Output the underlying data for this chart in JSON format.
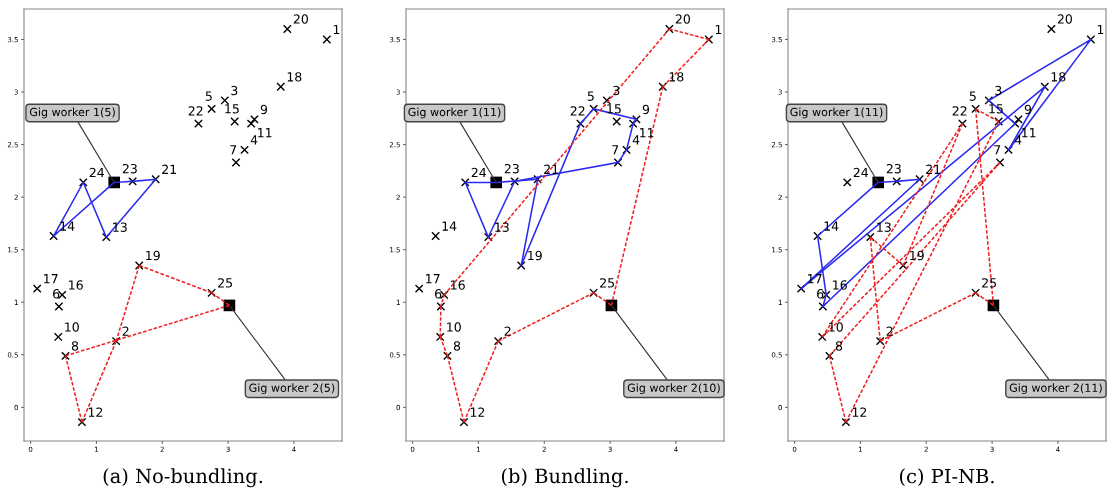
{
  "chart_data": [
    {
      "type": "scatter",
      "title": "(a) No-bundling.",
      "xlim": [
        -0.1,
        4.73
      ],
      "ylim": [
        -0.32,
        3.79
      ],
      "xticks": [
        0,
        1,
        2,
        3,
        4
      ],
      "yticks": [
        0,
        0.5,
        1,
        1.5,
        2,
        2.5,
        3,
        3.5
      ],
      "grid": false,
      "annotations": [
        {
          "text": "1",
          "x": 4.5,
          "y": 3.5
        },
        {
          "text": "2",
          "x": 1.3,
          "y": 0.63
        },
        {
          "text": "3",
          "x": 2.95,
          "y": 2.92
        },
        {
          "text": "4",
          "x": 3.25,
          "y": 2.45
        },
        {
          "text": "5",
          "x": 2.75,
          "y": 2.84
        },
        {
          "text": "6",
          "x": 0.43,
          "y": 0.96
        },
        {
          "text": "7",
          "x": 3.12,
          "y": 2.33
        },
        {
          "text": "8",
          "x": 0.53,
          "y": 0.49
        },
        {
          "text": "9",
          "x": 3.4,
          "y": 2.74
        },
        {
          "text": "10",
          "x": 0.42,
          "y": 0.67
        },
        {
          "text": "11",
          "x": 3.35,
          "y": 2.7
        },
        {
          "text": "12",
          "x": 0.78,
          "y": -0.14
        },
        {
          "text": "13",
          "x": 1.15,
          "y": 1.62
        },
        {
          "text": "14",
          "x": 0.35,
          "y": 1.63
        },
        {
          "text": "15",
          "x": 3.1,
          "y": 2.72
        },
        {
          "text": "16",
          "x": 0.48,
          "y": 1.07
        },
        {
          "text": "17",
          "x": 0.1,
          "y": 1.13
        },
        {
          "text": "18",
          "x": 3.8,
          "y": 3.05
        },
        {
          "text": "19",
          "x": 1.65,
          "y": 1.35
        },
        {
          "text": "20",
          "x": 3.9,
          "y": 3.6
        },
        {
          "text": "21",
          "x": 1.9,
          "y": 2.17
        },
        {
          "text": "22",
          "x": 2.55,
          "y": 2.7
        },
        {
          "text": "23",
          "x": 1.55,
          "y": 2.15
        },
        {
          "text": "24",
          "x": 0.8,
          "y": 2.14
        },
        {
          "text": "25",
          "x": 2.75,
          "y": 1.09
        },
        {
          "text": "Gig worker 1(5)",
          "x": 1.27,
          "y": 2.14
        },
        {
          "text": "Gig worker 2(5)",
          "x": 3.02,
          "y": 0.97
        }
      ],
      "series": [
        {
          "marker": "cross",
          "color": "#000000",
          "x": [
            4.5,
            1.3,
            2.95,
            3.25,
            2.75,
            0.43,
            3.12,
            0.53,
            3.4,
            0.42,
            3.35,
            0.78,
            1.15,
            0.35,
            3.1,
            0.48,
            0.1,
            3.8,
            1.65,
            3.9,
            1.9,
            2.55,
            1.55,
            0.8,
            2.75
          ],
          "values": [
            3.5,
            0.63,
            2.92,
            2.45,
            2.84,
            0.96,
            2.33,
            0.49,
            2.74,
            0.67,
            2.7,
            -0.14,
            1.62,
            1.63,
            2.72,
            1.07,
            1.13,
            3.05,
            1.35,
            3.6,
            2.17,
            2.7,
            2.15,
            2.14,
            1.09
          ]
        },
        {
          "marker": "square",
          "color": "#000000",
          "x": [
            1.27,
            3.02
          ],
          "values": [
            2.14,
            0.97
          ]
        },
        {
          "type": "line",
          "line_style": "solid",
          "color": "#2929f0",
          "x": [
            1.27,
            1.55
          ],
          "values": [
            2.14,
            2.15
          ]
        },
        {
          "type": "line",
          "line_style": "solid",
          "color": "#2929f0",
          "x": [
            1.55,
            1.9
          ],
          "values": [
            2.15,
            2.17
          ]
        },
        {
          "type": "line",
          "line_style": "solid",
          "color": "#2929f0",
          "x": [
            1.9,
            1.15
          ],
          "values": [
            2.17,
            1.62
          ]
        },
        {
          "type": "line",
          "line_style": "solid",
          "color": "#2929f0",
          "x": [
            1.15,
            0.8
          ],
          "values": [
            1.62,
            2.14
          ]
        },
        {
          "type": "line",
          "line_style": "solid",
          "color": "#2929f0",
          "x": [
            0.8,
            0.35
          ],
          "values": [
            2.14,
            1.63
          ]
        },
        {
          "type": "line",
          "line_style": "solid",
          "color": "#2929f0",
          "x": [
            0.35,
            1.27
          ],
          "values": [
            1.63,
            2.14
          ]
        },
        {
          "type": "line",
          "line_style": "dashed",
          "color": "#f02020",
          "x": [
            3.02,
            2.75
          ],
          "values": [
            0.97,
            1.09
          ]
        },
        {
          "type": "line",
          "line_style": "dashed",
          "color": "#f02020",
          "x": [
            2.75,
            1.65
          ],
          "values": [
            1.09,
            1.35
          ]
        },
        {
          "type": "line",
          "line_style": "dashed",
          "color": "#f02020",
          "x": [
            1.65,
            1.3
          ],
          "values": [
            1.35,
            0.63
          ]
        },
        {
          "type": "line",
          "line_style": "dashed",
          "color": "#f02020",
          "x": [
            1.3,
            0.78
          ],
          "values": [
            0.63,
            -0.14
          ]
        },
        {
          "type": "line",
          "line_style": "dashed",
          "color": "#f02020",
          "x": [
            0.78,
            0.53
          ],
          "values": [
            -0.14,
            0.49
          ]
        },
        {
          "type": "line",
          "line_style": "dashed",
          "color": "#f02020",
          "x": [
            0.53,
            3.02
          ],
          "values": [
            0.49,
            0.97
          ]
        }
      ]
    },
    {
      "type": "scatter",
      "title": "(b) Bundling.",
      "xlim": [
        -0.1,
        4.73
      ],
      "ylim": [
        -0.32,
        3.79
      ],
      "xticks": [
        0,
        1,
        2,
        3,
        4
      ],
      "yticks": [
        0,
        0.5,
        1,
        1.5,
        2,
        2.5,
        3,
        3.5
      ],
      "grid": false,
      "annotations": [
        {
          "text": "1",
          "x": 4.5,
          "y": 3.5
        },
        {
          "text": "2",
          "x": 1.3,
          "y": 0.63
        },
        {
          "text": "3",
          "x": 2.95,
          "y": 2.92
        },
        {
          "text": "4",
          "x": 3.25,
          "y": 2.45
        },
        {
          "text": "5",
          "x": 2.75,
          "y": 2.84
        },
        {
          "text": "6",
          "x": 0.43,
          "y": 0.96
        },
        {
          "text": "7",
          "x": 3.12,
          "y": 2.33
        },
        {
          "text": "8",
          "x": 0.53,
          "y": 0.49
        },
        {
          "text": "9",
          "x": 3.4,
          "y": 2.74
        },
        {
          "text": "10",
          "x": 0.42,
          "y": 0.67
        },
        {
          "text": "11",
          "x": 3.35,
          "y": 2.7
        },
        {
          "text": "12",
          "x": 0.78,
          "y": -0.14
        },
        {
          "text": "13",
          "x": 1.15,
          "y": 1.62
        },
        {
          "text": "14",
          "x": 0.35,
          "y": 1.63
        },
        {
          "text": "15",
          "x": 3.1,
          "y": 2.72
        },
        {
          "text": "16",
          "x": 0.48,
          "y": 1.07
        },
        {
          "text": "17",
          "x": 0.1,
          "y": 1.13
        },
        {
          "text": "18",
          "x": 3.8,
          "y": 3.05
        },
        {
          "text": "19",
          "x": 1.65,
          "y": 1.35
        },
        {
          "text": "20",
          "x": 3.9,
          "y": 3.6
        },
        {
          "text": "21",
          "x": 1.9,
          "y": 2.17
        },
        {
          "text": "22",
          "x": 2.55,
          "y": 2.7
        },
        {
          "text": "23",
          "x": 1.55,
          "y": 2.15
        },
        {
          "text": "24",
          "x": 0.8,
          "y": 2.14
        },
        {
          "text": "25",
          "x": 2.75,
          "y": 1.09
        },
        {
          "text": "Gig worker 1(11)",
          "x": 1.27,
          "y": 2.14
        },
        {
          "text": "Gig worker 2(10)",
          "x": 3.02,
          "y": 0.97
        }
      ],
      "series": [
        {
          "marker": "cross",
          "color": "#000000",
          "x": [
            4.5,
            1.3,
            2.95,
            3.25,
            2.75,
            0.43,
            3.12,
            0.53,
            3.4,
            0.42,
            3.35,
            0.78,
            1.15,
            0.35,
            3.1,
            0.48,
            0.1,
            3.8,
            1.65,
            3.9,
            1.9,
            2.55,
            1.55,
            0.8,
            2.75
          ],
          "values": [
            3.5,
            0.63,
            2.92,
            2.45,
            2.84,
            0.96,
            2.33,
            0.49,
            2.74,
            0.67,
            2.7,
            -0.14,
            1.62,
            1.63,
            2.72,
            1.07,
            1.13,
            3.05,
            1.35,
            3.6,
            2.17,
            2.7,
            2.15,
            2.14,
            1.09
          ]
        },
        {
          "marker": "square",
          "color": "#000000",
          "x": [
            1.27,
            3.02
          ],
          "values": [
            2.14,
            0.97
          ]
        },
        {
          "type": "line",
          "line_style": "solid",
          "color": "#2929f0",
          "x": [
            1.27,
            1.9
          ],
          "values": [
            2.14,
            2.17
          ]
        },
        {
          "type": "line",
          "line_style": "solid",
          "color": "#2929f0",
          "x": [
            1.9,
            1.65
          ],
          "values": [
            2.17,
            1.35
          ]
        },
        {
          "type": "line",
          "line_style": "solid",
          "color": "#2929f0",
          "x": [
            1.65,
            2.55
          ],
          "values": [
            1.35,
            2.7
          ]
        },
        {
          "type": "line",
          "line_style": "solid",
          "color": "#2929f0",
          "x": [
            2.55,
            2.75
          ],
          "values": [
            2.7,
            2.84
          ]
        },
        {
          "type": "line",
          "line_style": "solid",
          "color": "#2929f0",
          "x": [
            2.75,
            3.4
          ],
          "values": [
            2.84,
            2.74
          ]
        },
        {
          "type": "line",
          "line_style": "solid",
          "color": "#2929f0",
          "x": [
            3.4,
            3.35
          ],
          "values": [
            2.74,
            2.7
          ]
        },
        {
          "type": "line",
          "line_style": "solid",
          "color": "#2929f0",
          "x": [
            3.35,
            3.25
          ],
          "values": [
            2.7,
            2.45
          ]
        },
        {
          "type": "line",
          "line_style": "solid",
          "color": "#2929f0",
          "x": [
            3.25,
            3.12
          ],
          "values": [
            2.45,
            2.33
          ]
        },
        {
          "type": "line",
          "line_style": "solid",
          "color": "#2929f0",
          "x": [
            3.12,
            1.55
          ],
          "values": [
            2.33,
            2.15
          ]
        },
        {
          "type": "line",
          "line_style": "solid",
          "color": "#2929f0",
          "x": [
            1.55,
            1.15
          ],
          "values": [
            2.15,
            1.62
          ]
        },
        {
          "type": "line",
          "line_style": "solid",
          "color": "#2929f0",
          "x": [
            1.15,
            0.8
          ],
          "values": [
            1.62,
            2.14
          ]
        },
        {
          "type": "line",
          "line_style": "solid",
          "color": "#2929f0",
          "x": [
            0.8,
            1.27
          ],
          "values": [
            2.14,
            2.14
          ]
        },
        {
          "type": "line",
          "line_style": "dashed",
          "color": "#f02020",
          "x": [
            3.02,
            2.75
          ],
          "values": [
            0.97,
            1.09
          ]
        },
        {
          "type": "line",
          "line_style": "dashed",
          "color": "#f02020",
          "x": [
            2.75,
            1.3
          ],
          "values": [
            1.09,
            0.63
          ]
        },
        {
          "type": "line",
          "line_style": "dashed",
          "color": "#f02020",
          "x": [
            1.3,
            0.78
          ],
          "values": [
            0.63,
            -0.14
          ]
        },
        {
          "type": "line",
          "line_style": "dashed",
          "color": "#f02020",
          "x": [
            0.78,
            0.53
          ],
          "values": [
            -0.14,
            0.49
          ]
        },
        {
          "type": "line",
          "line_style": "dashed",
          "color": "#f02020",
          "x": [
            0.53,
            0.42
          ],
          "values": [
            0.49,
            0.67
          ]
        },
        {
          "type": "line",
          "line_style": "dashed",
          "color": "#f02020",
          "x": [
            0.42,
            0.43
          ],
          "values": [
            0.67,
            0.96
          ]
        },
        {
          "type": "line",
          "line_style": "dashed",
          "color": "#f02020",
          "x": [
            0.43,
            0.48
          ],
          "values": [
            0.96,
            1.07
          ]
        },
        {
          "type": "line",
          "line_style": "dashed",
          "color": "#f02020",
          "x": [
            0.48,
            3.9
          ],
          "values": [
            1.07,
            3.6
          ]
        },
        {
          "type": "line",
          "line_style": "dashed",
          "color": "#f02020",
          "x": [
            3.9,
            4.5
          ],
          "values": [
            3.6,
            3.5
          ]
        },
        {
          "type": "line",
          "line_style": "dashed",
          "color": "#f02020",
          "x": [
            4.5,
            3.8
          ],
          "values": [
            3.5,
            3.05
          ]
        },
        {
          "type": "line",
          "line_style": "dashed",
          "color": "#f02020",
          "x": [
            3.8,
            3.02
          ],
          "values": [
            3.05,
            0.97
          ]
        }
      ]
    },
    {
      "type": "scatter",
      "title": "(c) PI-NB.",
      "xlim": [
        -0.1,
        4.73
      ],
      "ylim": [
        -0.32,
        3.79
      ],
      "xticks": [
        0,
        1,
        2,
        3,
        4
      ],
      "yticks": [
        0,
        0.5,
        1,
        1.5,
        2,
        2.5,
        3,
        3.5
      ],
      "grid": false,
      "annotations": [
        {
          "text": "1",
          "x": 4.5,
          "y": 3.5
        },
        {
          "text": "2",
          "x": 1.3,
          "y": 0.63
        },
        {
          "text": "3",
          "x": 2.95,
          "y": 2.92
        },
        {
          "text": "4",
          "x": 3.25,
          "y": 2.45
        },
        {
          "text": "5",
          "x": 2.75,
          "y": 2.84
        },
        {
          "text": "6",
          "x": 0.43,
          "y": 0.96
        },
        {
          "text": "7",
          "x": 3.12,
          "y": 2.33
        },
        {
          "text": "8",
          "x": 0.53,
          "y": 0.49
        },
        {
          "text": "9",
          "x": 3.4,
          "y": 2.74
        },
        {
          "text": "10",
          "x": 0.42,
          "y": 0.67
        },
        {
          "text": "11",
          "x": 3.35,
          "y": 2.7
        },
        {
          "text": "12",
          "x": 0.78,
          "y": -0.14
        },
        {
          "text": "13",
          "x": 1.15,
          "y": 1.62
        },
        {
          "text": "14",
          "x": 0.35,
          "y": 1.63
        },
        {
          "text": "15",
          "x": 3.1,
          "y": 2.72
        },
        {
          "text": "16",
          "x": 0.48,
          "y": 1.07
        },
        {
          "text": "17",
          "x": 0.1,
          "y": 1.13
        },
        {
          "text": "18",
          "x": 3.8,
          "y": 3.05
        },
        {
          "text": "19",
          "x": 1.65,
          "y": 1.35
        },
        {
          "text": "20",
          "x": 3.9,
          "y": 3.6
        },
        {
          "text": "21",
          "x": 1.9,
          "y": 2.17
        },
        {
          "text": "22",
          "x": 2.55,
          "y": 2.7
        },
        {
          "text": "23",
          "x": 1.55,
          "y": 2.15
        },
        {
          "text": "24",
          "x": 0.8,
          "y": 2.14
        },
        {
          "text": "25",
          "x": 2.75,
          "y": 1.09
        },
        {
          "text": "Gig worker 1(11)",
          "x": 1.27,
          "y": 2.14
        },
        {
          "text": "Gig worker 2(11)",
          "x": 3.02,
          "y": 0.97
        }
      ],
      "series": [
        {
          "marker": "cross",
          "color": "#000000",
          "x": [
            4.5,
            1.3,
            2.95,
            3.25,
            2.75,
            0.43,
            3.12,
            0.53,
            3.4,
            0.42,
            3.35,
            0.78,
            1.15,
            0.35,
            3.1,
            0.48,
            0.1,
            3.8,
            1.65,
            3.9,
            1.9,
            2.55,
            1.55,
            0.8,
            2.75
          ],
          "values": [
            3.5,
            0.63,
            2.92,
            2.45,
            2.84,
            0.96,
            2.33,
            0.49,
            2.74,
            0.67,
            2.7,
            -0.14,
            1.62,
            1.63,
            2.72,
            1.07,
            1.13,
            3.05,
            1.35,
            3.6,
            2.17,
            2.7,
            2.15,
            2.14,
            1.09
          ]
        },
        {
          "marker": "square",
          "color": "#000000",
          "x": [
            1.27,
            3.02
          ],
          "values": [
            2.14,
            0.97
          ]
        },
        {
          "type": "line",
          "line_style": "solid",
          "color": "#2929f0",
          "x": [
            1.27,
            1.55
          ],
          "values": [
            2.14,
            2.15
          ]
        },
        {
          "type": "line",
          "line_style": "solid",
          "color": "#2929f0",
          "x": [
            1.55,
            1.9
          ],
          "values": [
            2.15,
            2.17
          ]
        },
        {
          "type": "line",
          "line_style": "solid",
          "color": "#2929f0",
          "x": [
            1.9,
            0.1
          ],
          "values": [
            2.17,
            1.13
          ]
        },
        {
          "type": "line",
          "line_style": "solid",
          "color": "#2929f0",
          "x": [
            0.1,
            3.8
          ],
          "values": [
            1.13,
            3.05
          ]
        },
        {
          "type": "line",
          "line_style": "solid",
          "color": "#2929f0",
          "x": [
            3.8,
            3.25
          ],
          "values": [
            3.05,
            2.45
          ]
        },
        {
          "type": "line",
          "line_style": "solid",
          "color": "#2929f0",
          "x": [
            3.25,
            4.5
          ],
          "values": [
            2.45,
            3.5
          ]
        },
        {
          "type": "line",
          "line_style": "solid",
          "color": "#2929f0",
          "x": [
            4.5,
            2.95
          ],
          "values": [
            3.5,
            2.92
          ]
        },
        {
          "type": "line",
          "line_style": "solid",
          "color": "#2929f0",
          "x": [
            2.95,
            3.35
          ],
          "values": [
            2.92,
            2.7
          ]
        },
        {
          "type": "line",
          "line_style": "solid",
          "color": "#2929f0",
          "x": [
            3.35,
            0.43
          ],
          "values": [
            2.7,
            0.96
          ]
        },
        {
          "type": "line",
          "line_style": "solid",
          "color": "#2929f0",
          "x": [
            0.43,
            0.48
          ],
          "values": [
            0.96,
            1.07
          ]
        },
        {
          "type": "line",
          "line_style": "solid",
          "color": "#2929f0",
          "x": [
            0.48,
            0.35
          ],
          "values": [
            1.07,
            1.63
          ]
        },
        {
          "type": "line",
          "line_style": "solid",
          "color": "#2929f0",
          "x": [
            0.35,
            1.27
          ],
          "values": [
            1.63,
            2.14
          ]
        },
        {
          "type": "line",
          "line_style": "dashed",
          "color": "#f02020",
          "x": [
            3.02,
            2.75
          ],
          "values": [
            0.97,
            1.09
          ]
        },
        {
          "type": "line",
          "line_style": "dashed",
          "color": "#f02020",
          "x": [
            2.75,
            1.3
          ],
          "values": [
            1.09,
            0.63
          ]
        },
        {
          "type": "line",
          "line_style": "dashed",
          "color": "#f02020",
          "x": [
            1.3,
            1.15
          ],
          "values": [
            0.63,
            1.62
          ]
        },
        {
          "type": "line",
          "line_style": "dashed",
          "color": "#f02020",
          "x": [
            1.15,
            1.65
          ],
          "values": [
            1.62,
            1.35
          ]
        },
        {
          "type": "line",
          "line_style": "dashed",
          "color": "#f02020",
          "x": [
            1.65,
            2.55
          ],
          "values": [
            1.35,
            2.7
          ]
        },
        {
          "type": "line",
          "line_style": "dashed",
          "color": "#f02020",
          "x": [
            2.55,
            0.42
          ],
          "values": [
            2.7,
            0.67
          ]
        },
        {
          "type": "line",
          "line_style": "dashed",
          "color": "#f02020",
          "x": [
            0.42,
            3.12
          ],
          "values": [
            0.67,
            2.33
          ]
        },
        {
          "type": "line",
          "line_style": "dashed",
          "color": "#f02020",
          "x": [
            3.12,
            0.53
          ],
          "values": [
            2.33,
            0.49
          ]
        },
        {
          "type": "line",
          "line_style": "dashed",
          "color": "#f02020",
          "x": [
            0.53,
            0.78
          ],
          "values": [
            0.49,
            -0.14
          ]
        },
        {
          "type": "line",
          "line_style": "dashed",
          "color": "#f02020",
          "x": [
            0.78,
            3.1
          ],
          "values": [
            -0.14,
            2.72
          ]
        },
        {
          "type": "line",
          "line_style": "dashed",
          "color": "#f02020",
          "x": [
            3.1,
            2.75
          ],
          "values": [
            2.72,
            2.84
          ]
        },
        {
          "type": "line",
          "line_style": "dashed",
          "color": "#f02020",
          "x": [
            2.75,
            3.02
          ],
          "values": [
            2.84,
            0.97
          ]
        }
      ]
    }
  ]
}
